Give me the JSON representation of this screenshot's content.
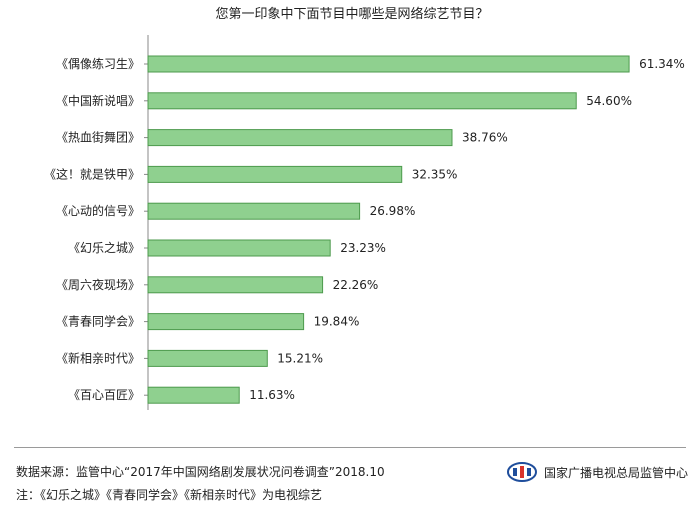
{
  "chart_data": {
    "type": "bar",
    "orientation": "horizontal",
    "title": "您第一印象中下面节目中哪些是网络综艺节目？",
    "categories": [
      "《偶像练习生》",
      "《中国新说唱》",
      "《热血街舞团》",
      "《这！就是铁甲》",
      "《心动的信号》",
      "《幻乐之城》",
      "《周六夜现场》",
      "《青春同学会》",
      "《新相亲时代》",
      "《百心百匠》"
    ],
    "values": [
      61.34,
      54.6,
      38.76,
      32.35,
      26.98,
      23.23,
      22.26,
      19.84,
      15.21,
      11.63
    ],
    "value_labels": [
      "61.34%",
      "54.60%",
      "38.76%",
      "32.35%",
      "26.98%",
      "23.23%",
      "22.26%",
      "19.84%",
      "15.21%",
      "11.63%"
    ],
    "xlim": [
      0,
      70
    ],
    "xlabel": "",
    "ylabel": "",
    "grid": false,
    "bar_color": "#8fd08f",
    "bar_border_color": "#4d9a4d"
  },
  "footer": {
    "source": "数据来源：监管中心“2017年中国网络剧发展状况问卷调查”2018.10",
    "note": "注：《幻乐之城》《青春同学会》《新相亲时代》为电视综艺",
    "org_name": "国家广播电视总局监管中心",
    "logo_color": "#1f4e9c",
    "logo_accent": "#d9342b"
  }
}
